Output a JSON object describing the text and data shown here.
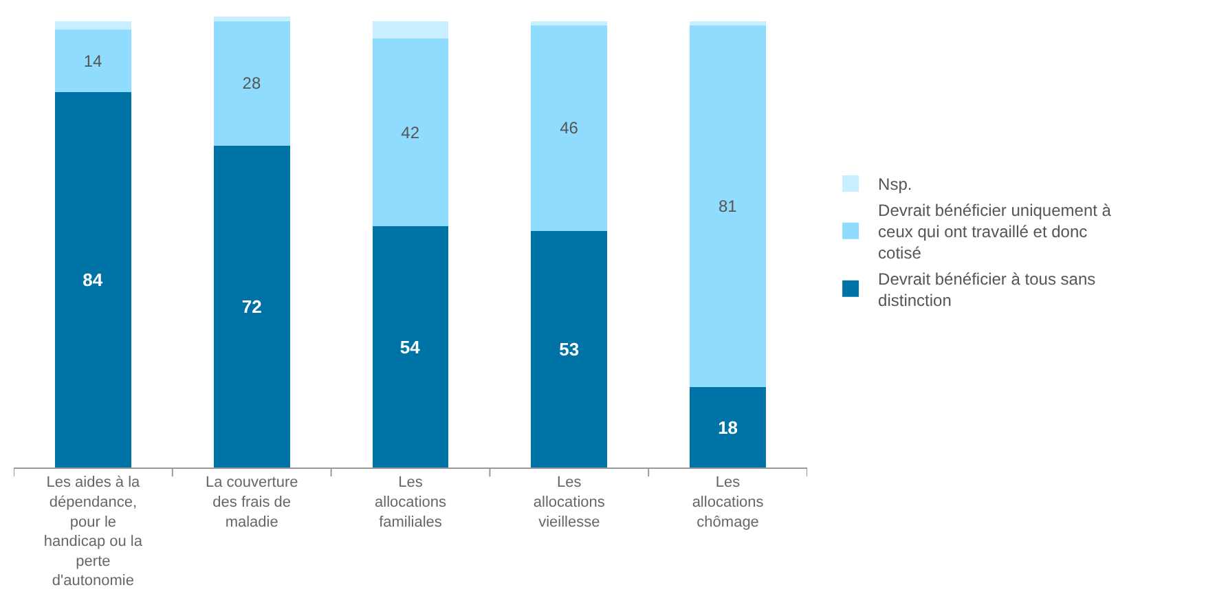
{
  "chart_data": {
    "type": "bar",
    "stacked": true,
    "legend": "right",
    "categories": [
      "Les aides à la dépendance, pour le handicap ou la perte d'autonomie",
      "La couverture des frais de maladie",
      "Les allocations familiales",
      "Les allocations vieillesse",
      "Les allocations chômage"
    ],
    "series": [
      {
        "name": "Devrait bénéficier à tous sans distinction",
        "color": "#0073a6",
        "values": [
          84,
          72,
          54,
          53,
          18
        ],
        "value_labels": [
          "84",
          "72",
          "54",
          "53",
          "18"
        ]
      },
      {
        "name": "Devrait bénéficier uniquement à ceux qui ont travaillé et donc cotisé",
        "color": "#8fdcff",
        "values": [
          14,
          28,
          42,
          46,
          81
        ],
        "value_labels": [
          "14",
          "28",
          "42",
          "46",
          "81"
        ]
      },
      {
        "name": "Nsp.",
        "color": "#c9eeff",
        "values": [
          2,
          1,
          4,
          1,
          1
        ]
      }
    ]
  }
}
